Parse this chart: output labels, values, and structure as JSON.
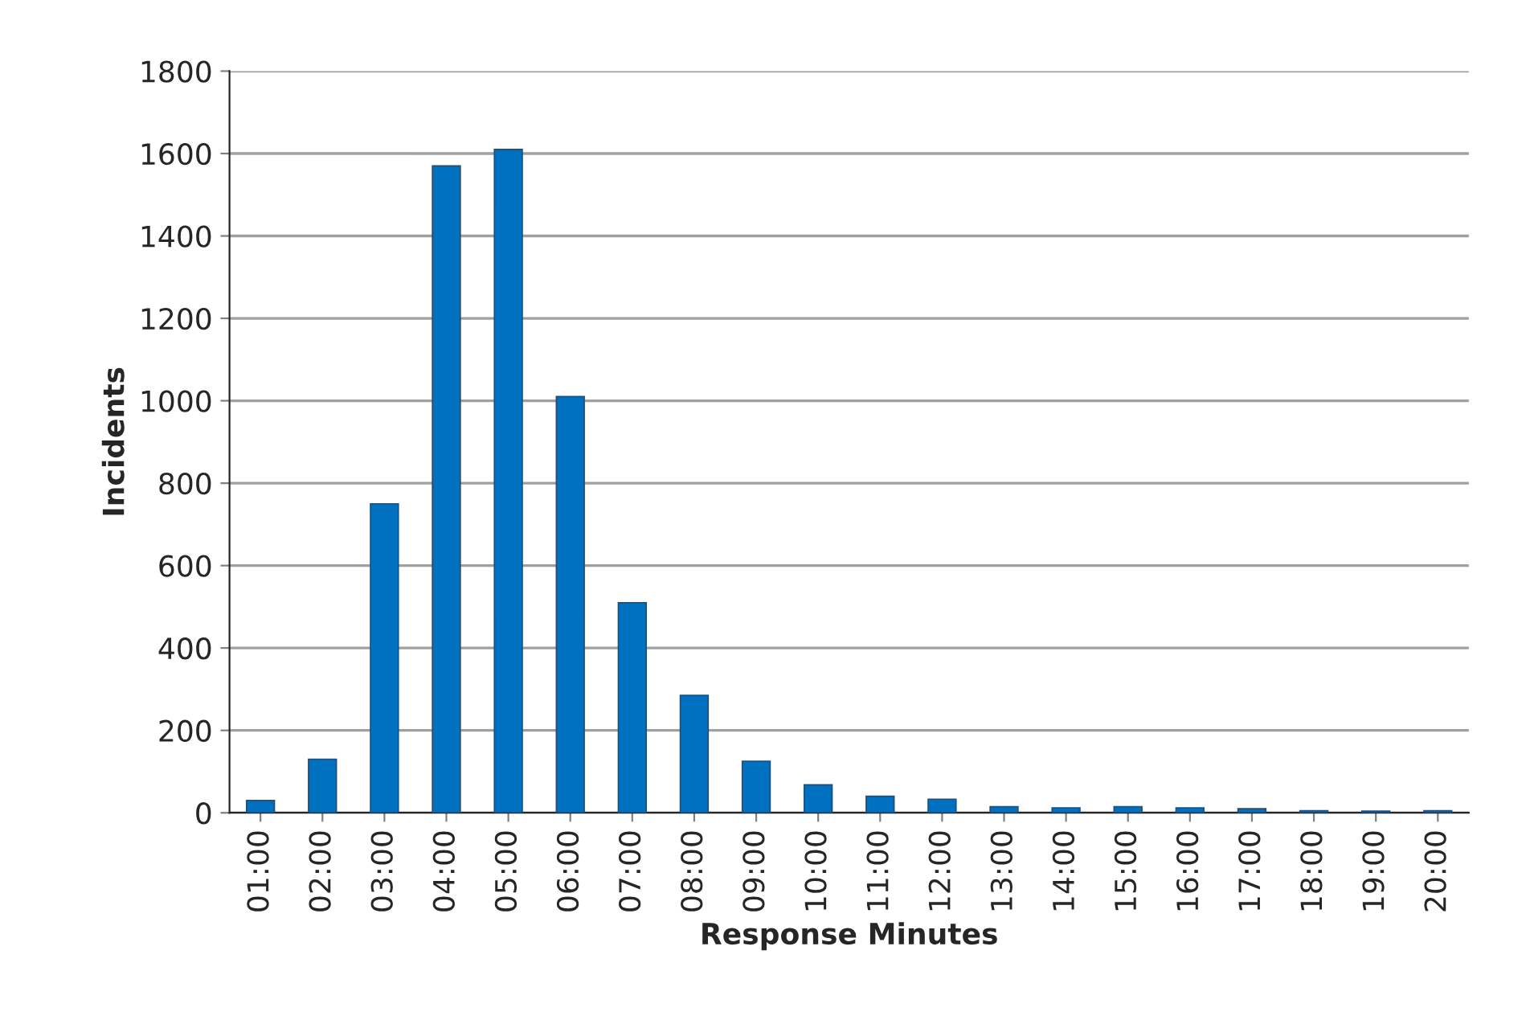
{
  "chart_data": {
    "type": "bar",
    "xlabel": "Response Minutes",
    "ylabel": "Incidents",
    "categories": [
      "01:00",
      "02:00",
      "03:00",
      "04:00",
      "05:00",
      "06:00",
      "07:00",
      "08:00",
      "09:00",
      "10:00",
      "11:00",
      "12:00",
      "13:00",
      "14:00",
      "15:00",
      "16:00",
      "17:00",
      "18:00",
      "19:00",
      "20:00"
    ],
    "values": [
      30,
      130,
      750,
      1570,
      1610,
      1010,
      510,
      285,
      125,
      68,
      40,
      33,
      15,
      12,
      15,
      12,
      10,
      5,
      4,
      5
    ],
    "color": "#0070c0",
    "ylim": [
      0,
      1800
    ],
    "yticks": [
      0,
      200,
      400,
      600,
      800,
      1000,
      1200,
      1400,
      1600,
      1800
    ],
    "grid": "y"
  }
}
